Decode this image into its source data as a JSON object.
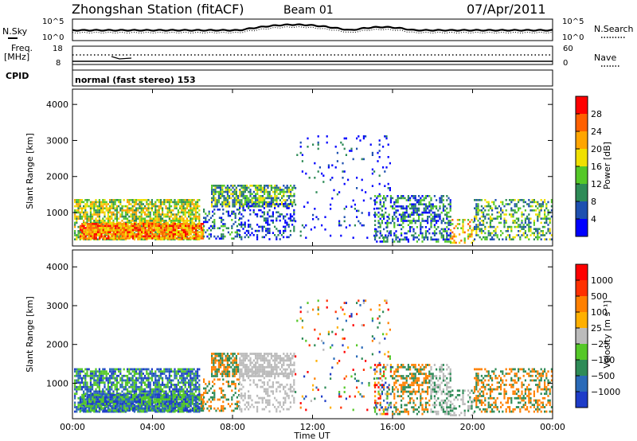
{
  "header": {
    "station": "Zhongshan Station (fitACF)",
    "beam": "Beam 01",
    "date": "07/Apr/2011"
  },
  "noise_panel": {
    "left_label": "N.Sky",
    "right_label": "N.Search",
    "left_ticks": [
      "10^5",
      "10^0"
    ],
    "right_ticks": [
      "10^5",
      "10^0"
    ]
  },
  "freq_panel": {
    "left_label_top": "Freq.",
    "left_label_unit": "[MHz]",
    "left_ticks": [
      "18",
      "8"
    ],
    "right_label": "Nave",
    "right_ticks": [
      "60",
      "0"
    ]
  },
  "cpid": {
    "label": "CPID",
    "value": "normal (fast stereo) 153"
  },
  "chart_data": [
    {
      "type": "heatmap",
      "name": "power",
      "ylabel": "Slant Range [km]",
      "yticks": [
        "4000",
        "3000",
        "2000",
        "1000"
      ],
      "xticks": [
        "00:00",
        "04:00",
        "08:00",
        "12:00",
        "16:00",
        "20:00",
        "00:00"
      ],
      "colorbar_label": "Power [dB]",
      "colorbar_ticks": [
        "28",
        "24",
        "20",
        "16",
        "12",
        "8",
        "4"
      ],
      "colors": [
        "#0000ff",
        "#1e50b0",
        "#2e8b57",
        "#55c828",
        "#f0e000",
        "#ffa500",
        "#ff6000",
        "#ff0000"
      ]
    },
    {
      "type": "heatmap",
      "name": "velocity",
      "ylabel": "Slant Range [km]",
      "yticks": [
        "4000",
        "3000",
        "2000",
        "1000"
      ],
      "xticks": [
        "00:00",
        "04:00",
        "08:00",
        "12:00",
        "16:00",
        "20:00",
        "00:00"
      ],
      "xlabel": "Time UT",
      "colorbar_label": "Velocity [m s⁻¹]",
      "colorbar_ticks": [
        "1000",
        "500",
        "100",
        "25",
        "−25",
        "−100",
        "−500",
        "−1000"
      ],
      "colors": [
        "#1e3cc8",
        "#2a6ab8",
        "#2e8b57",
        "#55c828",
        "#bbbbbb",
        "#ffb000",
        "#ff8000",
        "#ff3000",
        "#ff0000"
      ]
    }
  ]
}
